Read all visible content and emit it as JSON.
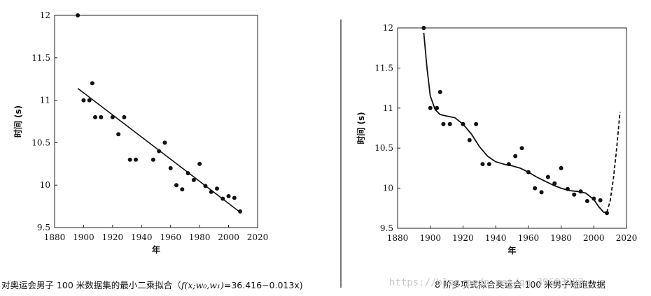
{
  "chart_data": [
    {
      "type": "scatter",
      "ylabel": "时间 (s)",
      "xlabel": "年",
      "xlim": [
        1880,
        2020
      ],
      "ylim": [
        9.5,
        12
      ],
      "x_ticks": [
        "1880",
        "1900",
        "1920",
        "1940",
        "1960",
        "1980",
        "2000",
        "2020"
      ],
      "y_ticks": [
        "9.5",
        "10",
        "10.5",
        "11",
        "11.5",
        "12"
      ],
      "points": [
        {
          "x": 1896,
          "y": 12.0
        },
        {
          "x": 1900,
          "y": 11.0
        },
        {
          "x": 1904,
          "y": 11.0
        },
        {
          "x": 1906,
          "y": 11.2
        },
        {
          "x": 1908,
          "y": 10.8
        },
        {
          "x": 1912,
          "y": 10.8
        },
        {
          "x": 1920,
          "y": 10.8
        },
        {
          "x": 1924,
          "y": 10.6
        },
        {
          "x": 1928,
          "y": 10.8
        },
        {
          "x": 1932,
          "y": 10.3
        },
        {
          "x": 1936,
          "y": 10.3
        },
        {
          "x": 1948,
          "y": 10.3
        },
        {
          "x": 1952,
          "y": 10.4
        },
        {
          "x": 1956,
          "y": 10.5
        },
        {
          "x": 1960,
          "y": 10.2
        },
        {
          "x": 1964,
          "y": 10.0
        },
        {
          "x": 1968,
          "y": 9.95
        },
        {
          "x": 1972,
          "y": 10.14
        },
        {
          "x": 1976,
          "y": 10.06
        },
        {
          "x": 1980,
          "y": 10.25
        },
        {
          "x": 1984,
          "y": 9.99
        },
        {
          "x": 1988,
          "y": 9.92
        },
        {
          "x": 1992,
          "y": 9.96
        },
        {
          "x": 1996,
          "y": 9.84
        },
        {
          "x": 2000,
          "y": 9.87
        },
        {
          "x": 2004,
          "y": 9.85
        },
        {
          "x": 2008,
          "y": 9.69
        }
      ],
      "fit_line": {
        "x": [
          1896,
          2008
        ],
        "y": [
          11.14,
          9.68
        ]
      },
      "caption_prefix": "对奥运会男子 100 米数据集的最小二乘拟合（",
      "caption_formula": "f(x;w₀,w₁)",
      "caption_suffix": "=36.416−0.013x)"
    },
    {
      "type": "scatter",
      "ylabel": "时间 (s)",
      "xlabel": "年",
      "xlim": [
        1880,
        2020
      ],
      "ylim": [
        9.5,
        12
      ],
      "x_ticks": [
        "1880",
        "1900",
        "1920",
        "1940",
        "1960",
        "1980",
        "2000",
        "2020"
      ],
      "y_ticks": [
        "9.5",
        "10",
        "10.5",
        "11",
        "11.5",
        "12"
      ],
      "points": [
        {
          "x": 1896,
          "y": 12.0
        },
        {
          "x": 1900,
          "y": 11.0
        },
        {
          "x": 1904,
          "y": 11.0
        },
        {
          "x": 1906,
          "y": 11.2
        },
        {
          "x": 1908,
          "y": 10.8
        },
        {
          "x": 1912,
          "y": 10.8
        },
        {
          "x": 1920,
          "y": 10.8
        },
        {
          "x": 1924,
          "y": 10.6
        },
        {
          "x": 1928,
          "y": 10.8
        },
        {
          "x": 1932,
          "y": 10.3
        },
        {
          "x": 1936,
          "y": 10.3
        },
        {
          "x": 1948,
          "y": 10.3
        },
        {
          "x": 1952,
          "y": 10.4
        },
        {
          "x": 1956,
          "y": 10.5
        },
        {
          "x": 1960,
          "y": 10.2
        },
        {
          "x": 1964,
          "y": 10.0
        },
        {
          "x": 1968,
          "y": 9.95
        },
        {
          "x": 1972,
          "y": 10.14
        },
        {
          "x": 1976,
          "y": 10.06
        },
        {
          "x": 1980,
          "y": 10.25
        },
        {
          "x": 1984,
          "y": 9.99
        },
        {
          "x": 1988,
          "y": 9.92
        },
        {
          "x": 1992,
          "y": 9.96
        },
        {
          "x": 1996,
          "y": 9.84
        },
        {
          "x": 2000,
          "y": 9.87
        },
        {
          "x": 2004,
          "y": 9.85
        },
        {
          "x": 2008,
          "y": 9.69
        }
      ],
      "fit_curve": {
        "x": [
          1896,
          1898,
          1900,
          1903,
          1906,
          1910,
          1915,
          1920,
          1925,
          1930,
          1935,
          1940,
          1945,
          1950,
          1955,
          1960,
          1965,
          1970,
          1975,
          1980,
          1985,
          1990,
          1995,
          2000,
          2003,
          2006,
          2008
        ],
        "y": [
          11.94,
          11.5,
          11.15,
          10.98,
          10.92,
          10.9,
          10.88,
          10.8,
          10.68,
          10.52,
          10.4,
          10.33,
          10.3,
          10.28,
          10.25,
          10.2,
          10.14,
          10.09,
          10.04,
          10.0,
          9.97,
          9.96,
          9.94,
          9.86,
          9.77,
          9.7,
          9.7
        ]
      },
      "extrapolation": {
        "x": [
          2008,
          2010,
          2012,
          2014,
          2016
        ],
        "y": [
          9.7,
          9.84,
          10.12,
          10.5,
          10.95
        ]
      },
      "caption": "8 阶多项式拟合奥运会 100 米男子短跑数据"
    }
  ],
  "watermark": "https://blog.csdn.net/qq_39683253"
}
